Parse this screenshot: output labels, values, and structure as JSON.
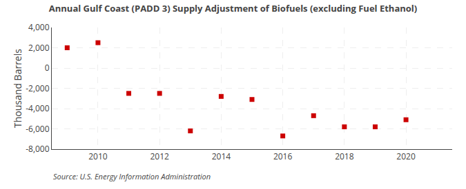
{
  "chart_data": {
    "type": "scatter",
    "title": "Annual Gulf Coast (PADD 3) Supply Adjustment of Biofuels (excluding Fuel Ethanol)",
    "ylabel": "Thousand Barrels",
    "annotations": [
      "Source: U.S. Energy Information Administration"
    ],
    "x": [
      2009,
      2010,
      2011,
      2012,
      2013,
      2014,
      2015,
      2016,
      2017,
      2018,
      2019,
      2020
    ],
    "values": [
      2000,
      2500,
      -2500,
      -2500,
      -6200,
      -2800,
      -3100,
      -6700,
      -4700,
      -5800,
      -5800,
      -5100
    ],
    "color": "#cc0000",
    "marker": "square",
    "xlim": [
      2008.5,
      2021.5
    ],
    "xticks": [
      2010,
      2012,
      2014,
      2016,
      2018,
      2020
    ],
    "ylim": [
      -8000,
      4000
    ],
    "yticks": [
      {
        "value": -8000,
        "label": "-8,000"
      },
      {
        "value": -6000,
        "label": "-6,000"
      },
      {
        "value": -4000,
        "label": "-4,000"
      },
      {
        "value": -2000,
        "label": "-2,000"
      },
      0,
      {
        "value": 2000,
        "label": "2,000"
      },
      {
        "value": 4000,
        "label": "4,000"
      }
    ],
    "grid": true
  }
}
